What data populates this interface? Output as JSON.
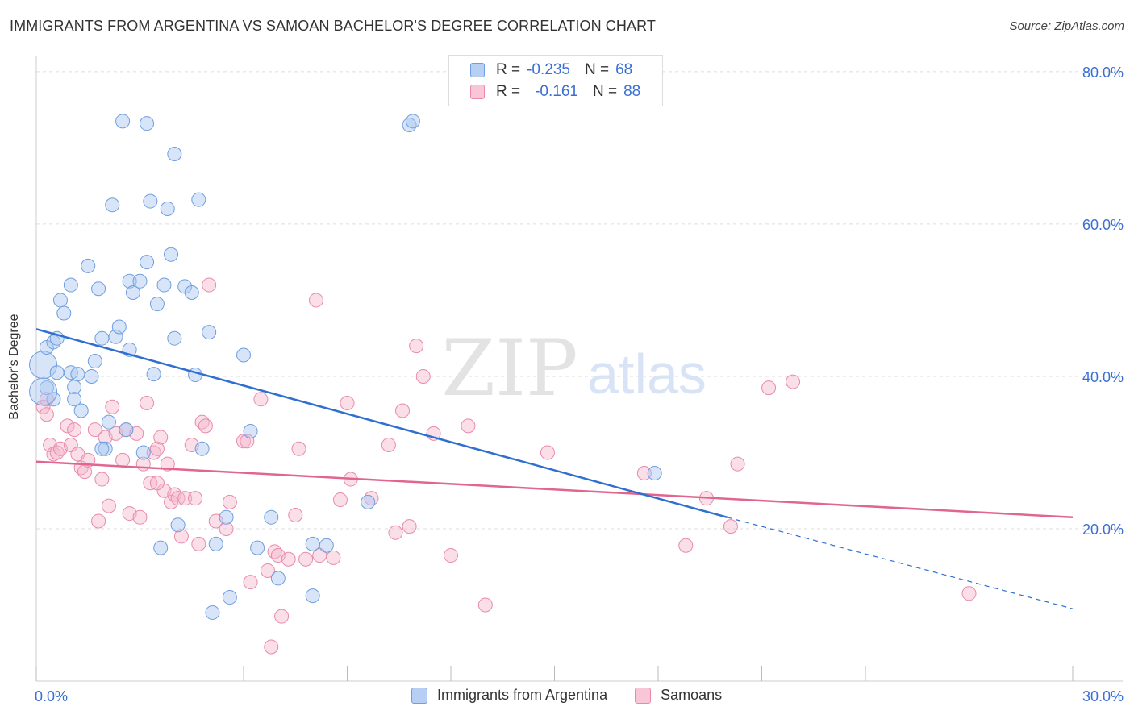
{
  "title": "IMMIGRANTS FROM ARGENTINA VS SAMOAN BACHELOR'S DEGREE CORRELATION CHART",
  "source": "Source: ZipAtlas.com",
  "watermark": {
    "zip": "ZIP",
    "atlas": "atlas"
  },
  "legend": {
    "rows": [
      {
        "r_label": "R =",
        "r_value": "-0.235",
        "n_label": "N =",
        "n_value": "68"
      },
      {
        "r_label": "R =",
        "r_value": "-0.161",
        "n_label": "N =",
        "n_value": "88"
      }
    ]
  },
  "bottom_legend": {
    "series1": "Immigrants from Argentina",
    "series2": "Samoans"
  },
  "colors": {
    "blue_fill": "#a9c6f0",
    "blue_stroke": "#6f9ee0",
    "blue_line": "#2f6fd0",
    "pink_fill": "#f5b8cc",
    "pink_stroke": "#e98aab",
    "pink_line": "#e06690",
    "axis_text": "#3b6fd4",
    "grid": "#dddddd"
  },
  "chart_data": {
    "type": "scatter",
    "title": "IMMIGRANTS FROM ARGENTINA VS SAMOAN BACHELOR'S DEGREE CORRELATION CHART",
    "xlabel": "",
    "ylabel": "Bachelor's Degree",
    "xlim": [
      0,
      30
    ],
    "ylim": [
      0,
      82
    ],
    "x_tick_labels": [
      "0.0%",
      "30.0%"
    ],
    "y_ticks": [
      20,
      40,
      60,
      80
    ],
    "y_tick_labels": [
      "20.0%",
      "40.0%",
      "60.0%",
      "80.0%"
    ],
    "series": [
      {
        "name": "Immigrants from Argentina",
        "points": [
          [
            0.2,
            41.5
          ],
          [
            0.3,
            38.5
          ],
          [
            0.3,
            43.8
          ],
          [
            0.5,
            44.5
          ],
          [
            0.6,
            40.5
          ],
          [
            0.5,
            37
          ],
          [
            0.6,
            45
          ],
          [
            0.7,
            50
          ],
          [
            0.8,
            48.3
          ],
          [
            1.0,
            52
          ],
          [
            1.1,
            38.6
          ],
          [
            1.0,
            40.5
          ],
          [
            1.1,
            37
          ],
          [
            1.2,
            40.3
          ],
          [
            1.3,
            35.5
          ],
          [
            1.5,
            54.5
          ],
          [
            1.6,
            40
          ],
          [
            1.7,
            42
          ],
          [
            1.8,
            51.5
          ],
          [
            1.9,
            45
          ],
          [
            2.0,
            30.5
          ],
          [
            2.1,
            34
          ],
          [
            2.2,
            62.5
          ],
          [
            2.3,
            45.2
          ],
          [
            2.4,
            46.5
          ],
          [
            2.5,
            73.5
          ],
          [
            2.6,
            33
          ],
          [
            2.7,
            52.5
          ],
          [
            2.7,
            43.5
          ],
          [
            2.8,
            51
          ],
          [
            3.0,
            52.5
          ],
          [
            3.1,
            30
          ],
          [
            3.2,
            73.2
          ],
          [
            3.2,
            55
          ],
          [
            3.3,
            63
          ],
          [
            3.4,
            40.3
          ],
          [
            3.5,
            49.5
          ],
          [
            3.6,
            17.5
          ],
          [
            3.7,
            52
          ],
          [
            3.8,
            62
          ],
          [
            3.9,
            56
          ],
          [
            4.0,
            45
          ],
          [
            4.0,
            69.2
          ],
          [
            4.1,
            20.5
          ],
          [
            4.3,
            51.8
          ],
          [
            4.5,
            51
          ],
          [
            4.6,
            40.2
          ],
          [
            4.7,
            63.2
          ],
          [
            4.8,
            30.5
          ],
          [
            5.0,
            45.8
          ],
          [
            5.1,
            9
          ],
          [
            5.2,
            18
          ],
          [
            5.5,
            21.5
          ],
          [
            5.6,
            11
          ],
          [
            6.0,
            42.8
          ],
          [
            6.2,
            32.8
          ],
          [
            6.4,
            17.5
          ],
          [
            6.8,
            21.5
          ],
          [
            7.0,
            13.5
          ],
          [
            8.0,
            18
          ],
          [
            8.0,
            11.2
          ],
          [
            8.4,
            17.8
          ],
          [
            9.6,
            23.5
          ],
          [
            10.8,
            73
          ],
          [
            10.9,
            73.5
          ],
          [
            17.9,
            27.3
          ],
          [
            0.2,
            38
          ],
          [
            1.9,
            30.5
          ]
        ],
        "trend": {
          "x": [
            0,
            20
          ],
          "y": [
            46.2,
            21.5
          ]
        },
        "trend_dashed": {
          "x": [
            20,
            30
          ],
          "y": [
            21.5,
            9.5
          ]
        }
      },
      {
        "name": "Samoans",
        "points": [
          [
            0.2,
            36
          ],
          [
            0.3,
            37
          ],
          [
            0.3,
            35
          ],
          [
            0.4,
            31
          ],
          [
            0.5,
            29.8
          ],
          [
            0.6,
            30
          ],
          [
            0.7,
            30.5
          ],
          [
            0.9,
            33.5
          ],
          [
            1.0,
            31
          ],
          [
            1.1,
            33
          ],
          [
            1.2,
            29.8
          ],
          [
            1.3,
            28
          ],
          [
            1.4,
            27.5
          ],
          [
            1.5,
            29
          ],
          [
            1.7,
            33
          ],
          [
            1.8,
            21
          ],
          [
            1.9,
            26.5
          ],
          [
            2.0,
            32
          ],
          [
            2.1,
            23
          ],
          [
            2.2,
            36
          ],
          [
            2.3,
            32.5
          ],
          [
            2.5,
            29
          ],
          [
            2.6,
            33
          ],
          [
            2.7,
            22
          ],
          [
            2.9,
            32.5
          ],
          [
            3.0,
            21.5
          ],
          [
            3.1,
            28.5
          ],
          [
            3.2,
            36.5
          ],
          [
            3.3,
            26
          ],
          [
            3.4,
            30
          ],
          [
            3.5,
            30.5
          ],
          [
            3.6,
            32
          ],
          [
            3.7,
            25
          ],
          [
            3.8,
            28.5
          ],
          [
            3.9,
            23.5
          ],
          [
            4.0,
            24.5
          ],
          [
            4.1,
            24
          ],
          [
            4.2,
            19
          ],
          [
            4.3,
            24
          ],
          [
            4.5,
            31
          ],
          [
            4.6,
            24
          ],
          [
            4.7,
            18
          ],
          [
            4.8,
            34
          ],
          [
            4.9,
            33.5
          ],
          [
            5.0,
            52
          ],
          [
            5.2,
            21
          ],
          [
            5.5,
            20
          ],
          [
            5.6,
            23.5
          ],
          [
            6.0,
            31.5
          ],
          [
            6.1,
            31.5
          ],
          [
            6.2,
            13
          ],
          [
            6.5,
            37
          ],
          [
            6.7,
            14.5
          ],
          [
            6.8,
            4.5
          ],
          [
            6.9,
            17
          ],
          [
            7.0,
            16.5
          ],
          [
            7.1,
            8.5
          ],
          [
            7.3,
            16
          ],
          [
            7.5,
            21.8
          ],
          [
            7.6,
            30.5
          ],
          [
            7.8,
            16
          ],
          [
            8.1,
            50
          ],
          [
            8.2,
            16.5
          ],
          [
            8.6,
            16.2
          ],
          [
            8.8,
            23.8
          ],
          [
            9.0,
            36.5
          ],
          [
            9.1,
            26.5
          ],
          [
            9.7,
            24
          ],
          [
            10.2,
            31
          ],
          [
            10.4,
            19.5
          ],
          [
            10.6,
            35.5
          ],
          [
            10.8,
            20.3
          ],
          [
            11.0,
            44
          ],
          [
            11.2,
            40
          ],
          [
            11.5,
            32.5
          ],
          [
            12.0,
            16.5
          ],
          [
            12.5,
            33.5
          ],
          [
            13.0,
            10
          ],
          [
            14.8,
            30
          ],
          [
            17.6,
            27.3
          ],
          [
            18.8,
            17.8
          ],
          [
            19.4,
            24
          ],
          [
            20.1,
            20.3
          ],
          [
            20.3,
            28.5
          ],
          [
            21.2,
            38.5
          ],
          [
            21.9,
            39.3
          ],
          [
            27.0,
            11.5
          ],
          [
            3.5,
            26
          ]
        ],
        "trend": {
          "x": [
            0,
            30
          ],
          "y": [
            28.8,
            21.5
          ]
        }
      }
    ]
  }
}
